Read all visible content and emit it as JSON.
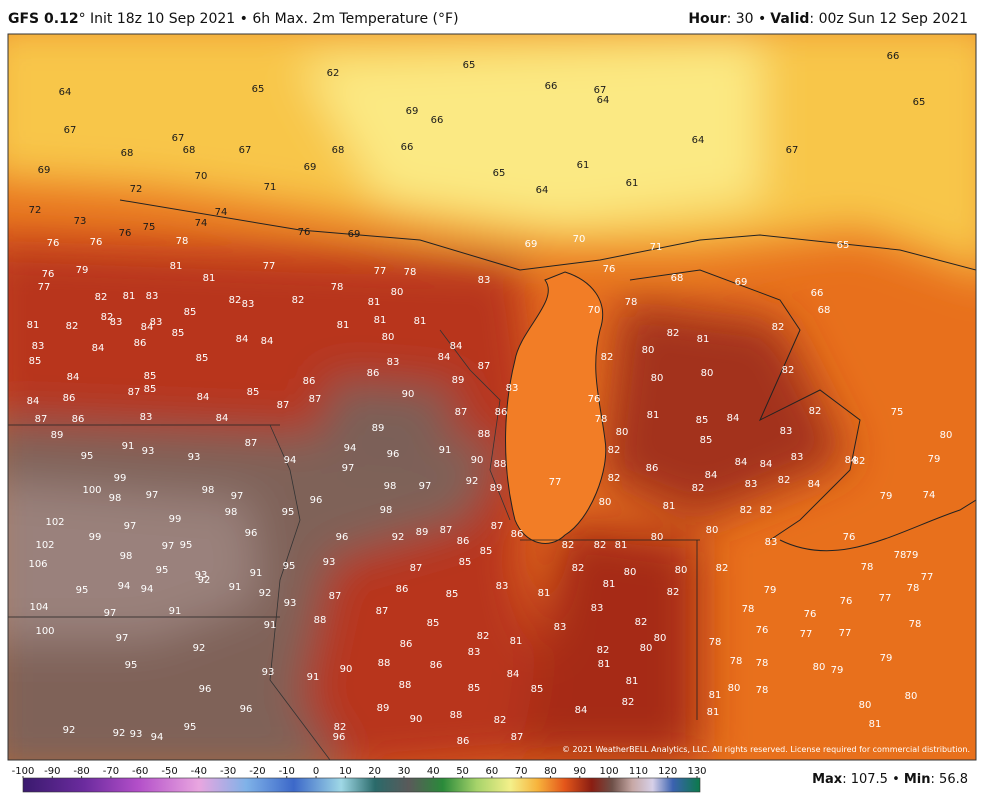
{
  "header": {
    "model": "GFS 0.12",
    "title": "° Init 18z 10 Sep 2021 • 6h Max. 2m Temperature (°F)",
    "hour_label": "Hour",
    "hour_value": ": 30 •",
    "valid_label": "Valid",
    "valid_value": ": 00z Sun 12 Sep 2021"
  },
  "map": {
    "labels": [
      66,
      65,
      67,
      65,
      62,
      64,
      65,
      66,
      67,
      64,
      69,
      66,
      67,
      67,
      68,
      68,
      67,
      68,
      66,
      69,
      61,
      64,
      61,
      64,
      65,
      69,
      70,
      72,
      71,
      72,
      73,
      74,
      74,
      75,
      76,
      78,
      76,
      76,
      76,
      69,
      69,
      70,
      71,
      65,
      81,
      77,
      77,
      78,
      79,
      76,
      77,
      81,
      83,
      76,
      68,
      69,
      66,
      68,
      82,
      81,
      83,
      82,
      83,
      82,
      78,
      80,
      81,
      70,
      78,
      81,
      82,
      82,
      83,
      84,
      83,
      85,
      81,
      81,
      81,
      80,
      82,
      81,
      82,
      83,
      84,
      86,
      85,
      84,
      84,
      84,
      84,
      85,
      85,
      85,
      83,
      87,
      82,
      80,
      84,
      86,
      86,
      89,
      83,
      80,
      80,
      82,
      84,
      86,
      87,
      85,
      84,
      85,
      87,
      87,
      90,
      87,
      86,
      76,
      81,
      85,
      84,
      82,
      75,
      87,
      86,
      83,
      84,
      89,
      88,
      78,
      80,
      83,
      80,
      91,
      93,
      87,
      94,
      91,
      89,
      85,
      95,
      93,
      94,
      96,
      90,
      88,
      82,
      86,
      84,
      84,
      83,
      84,
      82,
      79,
      97,
      99,
      97,
      98,
      92,
      89,
      77,
      82,
      84,
      83,
      82,
      84,
      100,
      98,
      97,
      98,
      97,
      96,
      74,
      79,
      82,
      98,
      95,
      98,
      99,
      102,
      97,
      96,
      92,
      89,
      87,
      87,
      86,
      80,
      81,
      80,
      82,
      82,
      86,
      99,
      102,
      97,
      95,
      96,
      85,
      82,
      82,
      81,
      80,
      83,
      76,
      78,
      79,
      106,
      98,
      91,
      95,
      93,
      92,
      91,
      92,
      95,
      93,
      87,
      85,
      82,
      80,
      80,
      82,
      78,
      77,
      95,
      94,
      94,
      86,
      85,
      83,
      81,
      82,
      79,
      77,
      78,
      76,
      104,
      97,
      91,
      93,
      87,
      87,
      81,
      83,
      78,
      76,
      88,
      85,
      82,
      78,
      100,
      97,
      92,
      91,
      82,
      81,
      83,
      80,
      80,
      76,
      77,
      77,
      78,
      86,
      83,
      82,
      79,
      95,
      93,
      90,
      88,
      86,
      84,
      81,
      78,
      78,
      80,
      79,
      91,
      88,
      85,
      85,
      81,
      78,
      80,
      81,
      96,
      96,
      89,
      90,
      88,
      84,
      82,
      80,
      80,
      81,
      82,
      81,
      95,
      92,
      92,
      93,
      94,
      82,
      96,
      87,
      86
    ],
    "credit": "© 2021 WeatherBELL Analytics, LLC. All rights reserved. License required for commercial distribution."
  },
  "colorbar": {
    "ticks": [
      -100,
      -90,
      -80,
      -70,
      -60,
      -50,
      -40,
      -30,
      -20,
      -10,
      0,
      10,
      20,
      30,
      40,
      50,
      60,
      70,
      80,
      90,
      100,
      110,
      120,
      130
    ]
  },
  "footer": {
    "max_label": "Max",
    "max": 107.5,
    "min_label": "Min",
    "min": 56.8
  }
}
